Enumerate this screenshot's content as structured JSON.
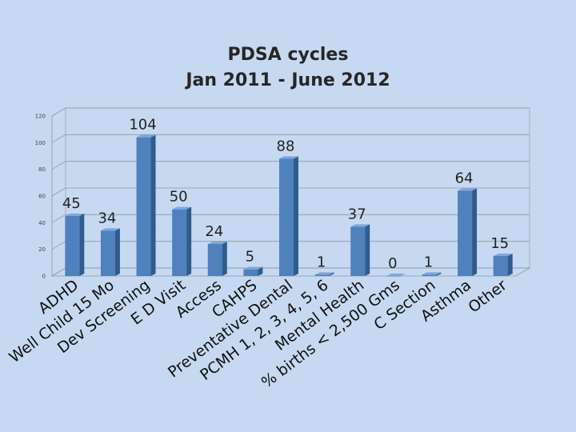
{
  "chart_data": {
    "type": "bar",
    "title": "PDSA cycles",
    "subtitle": "Jan 2011 - June 2012",
    "categories": [
      "ADHD",
      "Well Child  15 Mo",
      "Dev Screening",
      "E D Visit",
      "Access",
      "CAHPS",
      "Preventative Dental",
      "PCMH  1, 2, 3, 4, 5, 6",
      "Mental Health",
      "% births < 2,500 Gms",
      "C Section",
      "Asthma",
      "Other"
    ],
    "values": [
      45,
      34,
      104,
      50,
      24,
      5,
      88,
      1,
      37,
      0,
      1,
      64,
      15
    ],
    "data_labels": [
      "45",
      "34",
      "104",
      "50",
      "24",
      "5",
      "88",
      "1",
      "37",
      "0",
      "1",
      "64",
      "15"
    ],
    "ylim": [
      0,
      120
    ],
    "yticks": [
      "0",
      "20",
      "40",
      "60",
      "80",
      "100",
      "120"
    ],
    "grid": true,
    "bar_color": "#4f81bd",
    "bar_side_color": "#2f5b8e",
    "bar_top_color": "#7ea6d8"
  }
}
